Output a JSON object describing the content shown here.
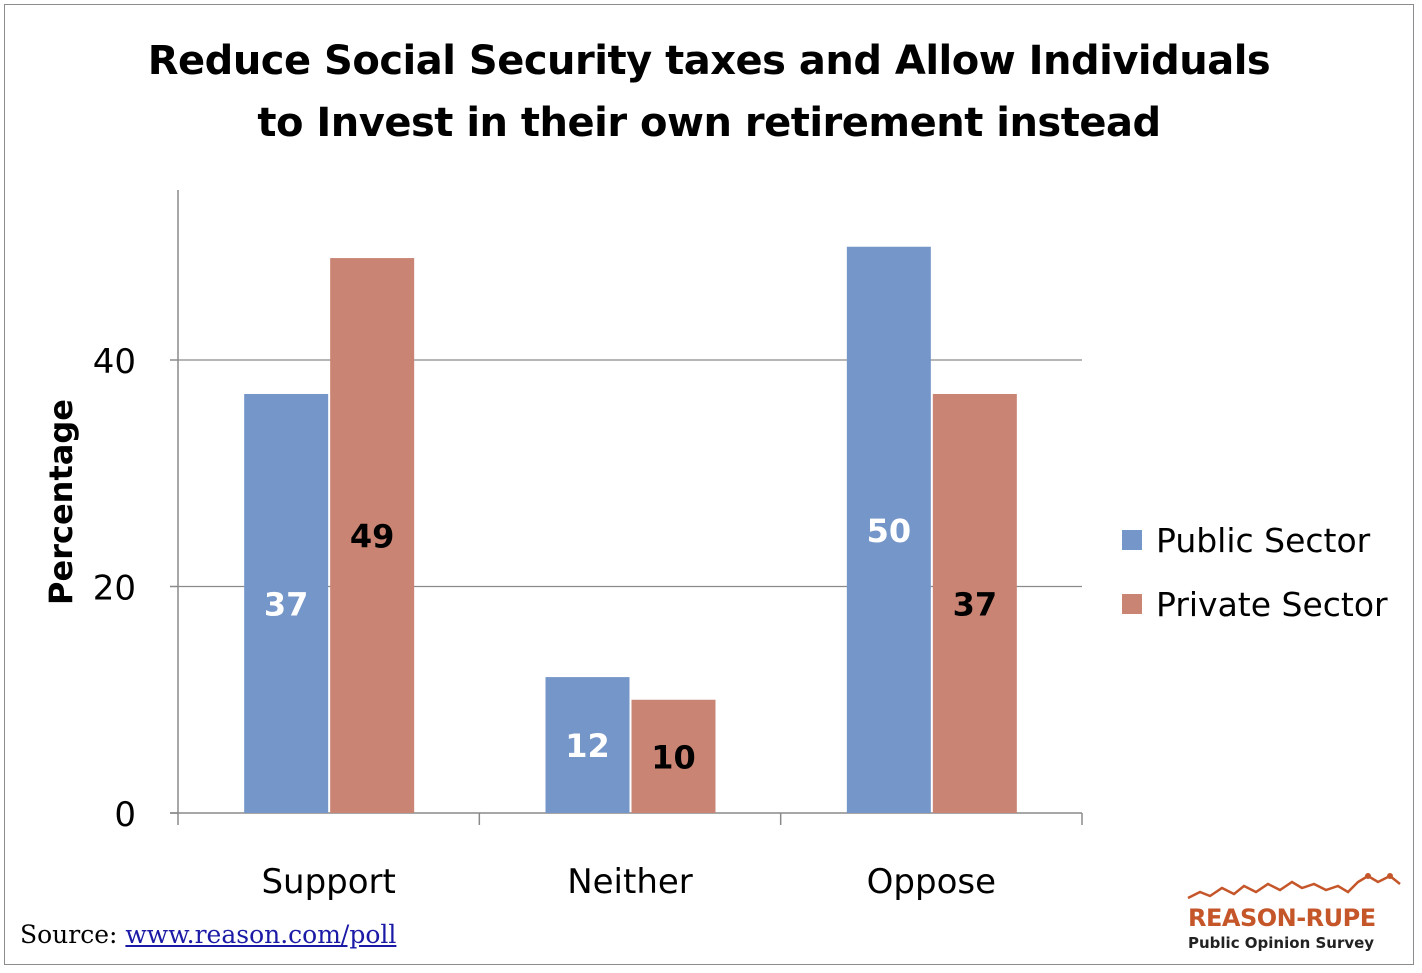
{
  "chart_data": {
    "type": "bar",
    "title_line1": "Reduce Social Security taxes and Allow Individuals",
    "title_line2": "to Invest in their own retirement instead",
    "ylabel": "Percentage",
    "xlabel": "",
    "categories": [
      "Support",
      "Neither",
      "Oppose"
    ],
    "series": [
      {
        "name": "Public Sector",
        "values": [
          37,
          12,
          50
        ],
        "color": "#7596c8",
        "label_color": "#ffffff"
      },
      {
        "name": "Private Sector",
        "values": [
          49,
          10,
          37
        ],
        "color": "#c98473",
        "label_color": "#000000"
      }
    ],
    "ylim": [
      0,
      55
    ],
    "yticks": [
      0,
      20,
      40
    ],
    "grid": true,
    "legend_position": "right"
  },
  "source": {
    "prefix": "Source: ",
    "link_text": "www.reason.com/poll"
  },
  "logo": {
    "main_text": "REASON-RUPE",
    "sub_text": "Public Opinion Survey",
    "color": "#c5562a"
  }
}
